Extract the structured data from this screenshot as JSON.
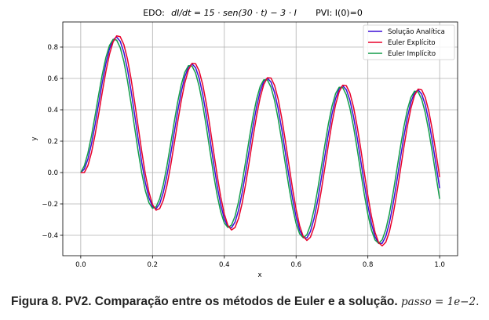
{
  "chart_data": {
    "type": "line",
    "title_left": "EDO:",
    "title_equation": "dI/dt = 15 · sen(30 · t) − 3 · I",
    "title_right": "PVI: I(0)=0",
    "xlabel": "x",
    "ylabel": "y",
    "xlim": [
      -0.05,
      1.05
    ],
    "ylim": [
      -0.53,
      0.96
    ],
    "x_ticks": [
      "0.0",
      "0.2",
      "0.4",
      "0.6",
      "0.8",
      "1.0"
    ],
    "y_ticks": [
      "−0.4",
      "−0.2",
      "0.0",
      "0.2",
      "0.4",
      "0.6",
      "0.8"
    ],
    "grid": true,
    "legend_position": "top-right",
    "step": 0.01,
    "x_range": [
      0,
      1
    ],
    "series": [
      {
        "name": "Solução Analítica",
        "color": "#3b0fd6",
        "method": "analytic"
      },
      {
        "name": "Euler Explícito",
        "color": "#e8002a",
        "method": "explicit"
      },
      {
        "name": "Euler Implícito",
        "color": "#129c49",
        "method": "implicit"
      }
    ]
  },
  "caption": {
    "text": "Figura 8. PV2. Comparação entre os métodos de Euler e a solução.",
    "math": "passo = 1e−2."
  }
}
